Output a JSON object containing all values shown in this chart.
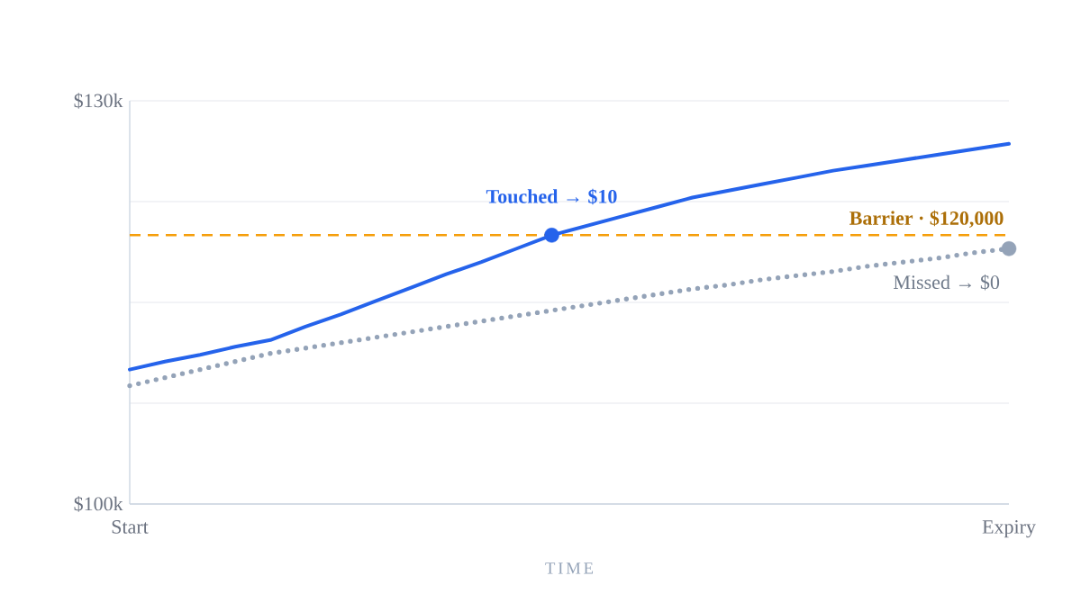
{
  "chart_data": {
    "type": "line",
    "xlabel": "TIME",
    "categories": [
      "Start",
      null,
      null,
      null,
      null,
      null,
      null,
      null,
      null,
      null,
      null,
      null,
      null,
      null,
      null,
      null,
      null,
      null,
      null,
      null,
      null,
      null,
      null,
      null,
      null,
      "Expiry"
    ],
    "ylim": [
      100000,
      130000
    ],
    "yticks": [
      {
        "value": 100000,
        "label": "$100k"
      },
      {
        "value": 107500,
        "label": null
      },
      {
        "value": 115000,
        "label": null
      },
      {
        "value": 122500,
        "label": null
      },
      {
        "value": 130000,
        "label": "$130k"
      }
    ],
    "grid": "y",
    "series": [
      {
        "color": "#2563eb",
        "line_style": "solid",
        "values": [
          110000,
          110600,
          111100,
          111700,
          112200,
          113200,
          114100,
          115100,
          116100,
          117100,
          118000,
          119000,
          120000,
          120700,
          121400,
          122100,
          122800,
          123300,
          123800,
          124300,
          124800,
          125200,
          125600,
          126000,
          126400,
          126800
        ]
      },
      {
        "color": "#94a3b8",
        "line_style": "dotted",
        "values": [
          108800,
          109400,
          110000,
          110600,
          111200,
          111600,
          112000,
          112400,
          112800,
          113200,
          113600,
          114000,
          114400,
          114800,
          115200,
          115600,
          116000,
          116300,
          116700,
          117000,
          117300,
          117700,
          118000,
          118300,
          118700,
          119000
        ]
      },
      {
        "type": "scatter",
        "marker": "circle",
        "color": "#2563eb",
        "values": [
          null,
          null,
          null,
          null,
          null,
          null,
          null,
          null,
          null,
          null,
          null,
          null,
          120000,
          null,
          null,
          null,
          null,
          null,
          null,
          null,
          null,
          null,
          null,
          null,
          null,
          null
        ]
      },
      {
        "type": "scatter",
        "marker": "circle",
        "color": "#94a3b8",
        "values": [
          null,
          null,
          null,
          null,
          null,
          null,
          null,
          null,
          null,
          null,
          null,
          null,
          null,
          null,
          null,
          null,
          null,
          null,
          null,
          null,
          null,
          null,
          null,
          null,
          null,
          119000
        ]
      }
    ],
    "ref_lines": [
      {
        "axis": "y",
        "value": 120000,
        "label": "Barrier · $120,000",
        "color": "#f59e0b",
        "line_style": "dashed"
      }
    ],
    "annotations": [
      {
        "text": "Touched → $10",
        "y": 120000
      },
      {
        "text": "Missed → $0",
        "x": "Expiry",
        "y": 119000
      }
    ]
  }
}
